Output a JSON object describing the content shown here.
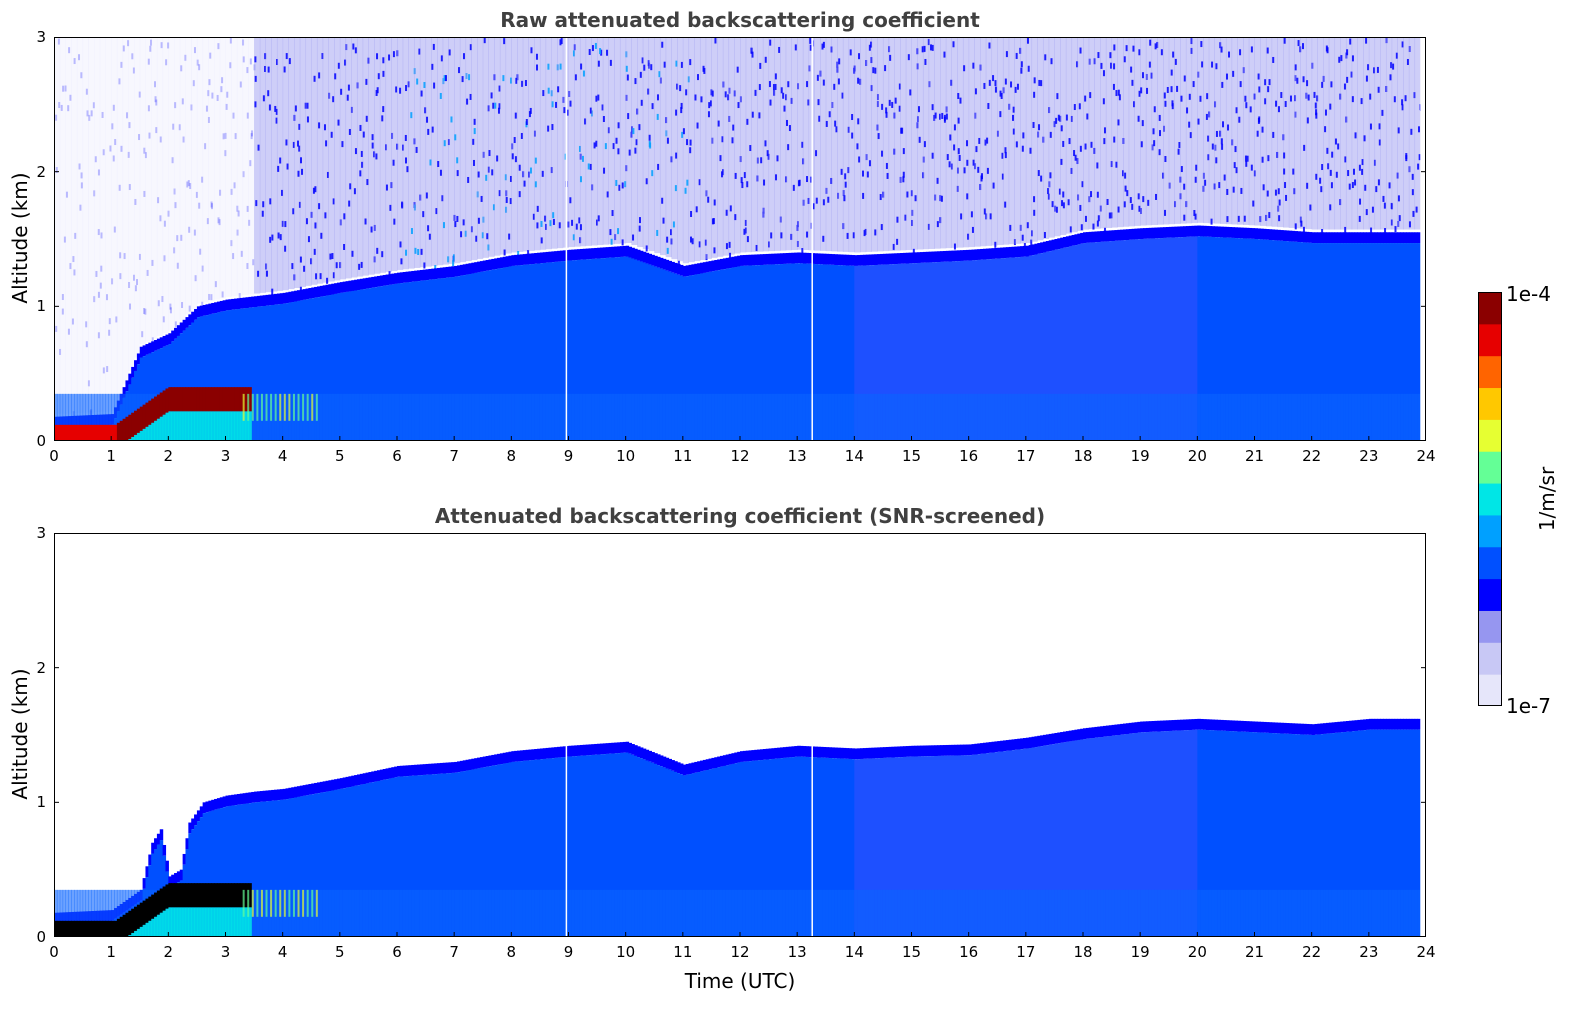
{
  "chart_data": [
    {
      "type": "heatmap",
      "title": "Raw attenuated backscattering coefficient",
      "xlabel": "",
      "ylabel": "Altitude (km)",
      "xlim": [
        0,
        24
      ],
      "ylim": [
        0,
        3
      ],
      "x_ticks": [
        "0",
        "1",
        "2",
        "3",
        "4",
        "5",
        "6",
        "7",
        "8",
        "9",
        "10",
        "11",
        "12",
        "13",
        "14",
        "15",
        "16",
        "17",
        "18",
        "19",
        "20",
        "21",
        "22",
        "23",
        "24"
      ],
      "y_ticks": [
        "0",
        "1",
        "2",
        "3"
      ],
      "boundary_layer_top_km": [
        [
          0,
          0.18
        ],
        [
          1.0,
          0.2
        ],
        [
          1.5,
          0.7
        ],
        [
          2.0,
          0.8
        ],
        [
          2.5,
          1.0
        ],
        [
          3.0,
          1.05
        ],
        [
          4.0,
          1.1
        ],
        [
          5.0,
          1.18
        ],
        [
          6.0,
          1.25
        ],
        [
          7.0,
          1.3
        ],
        [
          8.0,
          1.38
        ],
        [
          9.0,
          1.42
        ],
        [
          10.0,
          1.45
        ],
        [
          11.0,
          1.3
        ],
        [
          12.0,
          1.38
        ],
        [
          13.0,
          1.4
        ],
        [
          14.0,
          1.38
        ],
        [
          15.0,
          1.4
        ],
        [
          16.0,
          1.42
        ],
        [
          17.0,
          1.45
        ],
        [
          18.0,
          1.55
        ],
        [
          19.0,
          1.58
        ],
        [
          20.0,
          1.6
        ],
        [
          21.0,
          1.58
        ],
        [
          22.0,
          1.55
        ],
        [
          23.0,
          1.55
        ],
        [
          23.9,
          1.55
        ]
      ],
      "data_end_utc": 23.9,
      "gaps_utc": [
        8.95,
        13.25
      ],
      "screened": false
    },
    {
      "type": "heatmap",
      "title": "Attenuated backscattering coefficient (SNR-screened)",
      "xlabel": "Time (UTC)",
      "ylabel": "Altitude (km)",
      "xlim": [
        0,
        24
      ],
      "ylim": [
        0,
        3
      ],
      "x_ticks": [
        "0",
        "1",
        "2",
        "3",
        "4",
        "5",
        "6",
        "7",
        "8",
        "9",
        "10",
        "11",
        "12",
        "13",
        "14",
        "15",
        "16",
        "17",
        "18",
        "19",
        "20",
        "21",
        "22",
        "23",
        "24"
      ],
      "y_ticks": [
        "0",
        "1",
        "2",
        "3"
      ],
      "boundary_layer_top_km": [
        [
          0,
          0.18
        ],
        [
          1.0,
          0.2
        ],
        [
          1.5,
          0.35
        ],
        [
          1.7,
          0.7
        ],
        [
          1.85,
          0.8
        ],
        [
          2.0,
          0.45
        ],
        [
          2.2,
          0.5
        ],
        [
          2.35,
          0.85
        ],
        [
          2.6,
          1.0
        ],
        [
          3.0,
          1.05
        ],
        [
          3.5,
          1.08
        ],
        [
          4.0,
          1.1
        ],
        [
          5.0,
          1.18
        ],
        [
          6.0,
          1.27
        ],
        [
          7.0,
          1.3
        ],
        [
          8.0,
          1.38
        ],
        [
          9.0,
          1.42
        ],
        [
          10.0,
          1.45
        ],
        [
          11.0,
          1.28
        ],
        [
          12.0,
          1.38
        ],
        [
          13.0,
          1.42
        ],
        [
          14.0,
          1.4
        ],
        [
          15.0,
          1.42
        ],
        [
          16.0,
          1.43
        ],
        [
          17.0,
          1.48
        ],
        [
          18.0,
          1.55
        ],
        [
          19.0,
          1.6
        ],
        [
          20.0,
          1.62
        ],
        [
          21.0,
          1.6
        ],
        [
          22.0,
          1.58
        ],
        [
          23.0,
          1.62
        ],
        [
          23.9,
          1.62
        ]
      ],
      "data_end_utc": 23.9,
      "gaps_utc": [
        8.95,
        13.25
      ],
      "screened": true
    }
  ],
  "colorbar": {
    "max_label": "1e-4",
    "min_label": "1e-7",
    "units_label": "1/m/sr",
    "scale": "log",
    "colors": [
      "#e6e6fa",
      "#c8c8f5",
      "#9696f0",
      "#0000ff",
      "#0050ff",
      "#00a0ff",
      "#00e6e6",
      "#64ff96",
      "#e6ff32",
      "#ffc800",
      "#ff6400",
      "#e60000",
      "#8b0000"
    ]
  }
}
